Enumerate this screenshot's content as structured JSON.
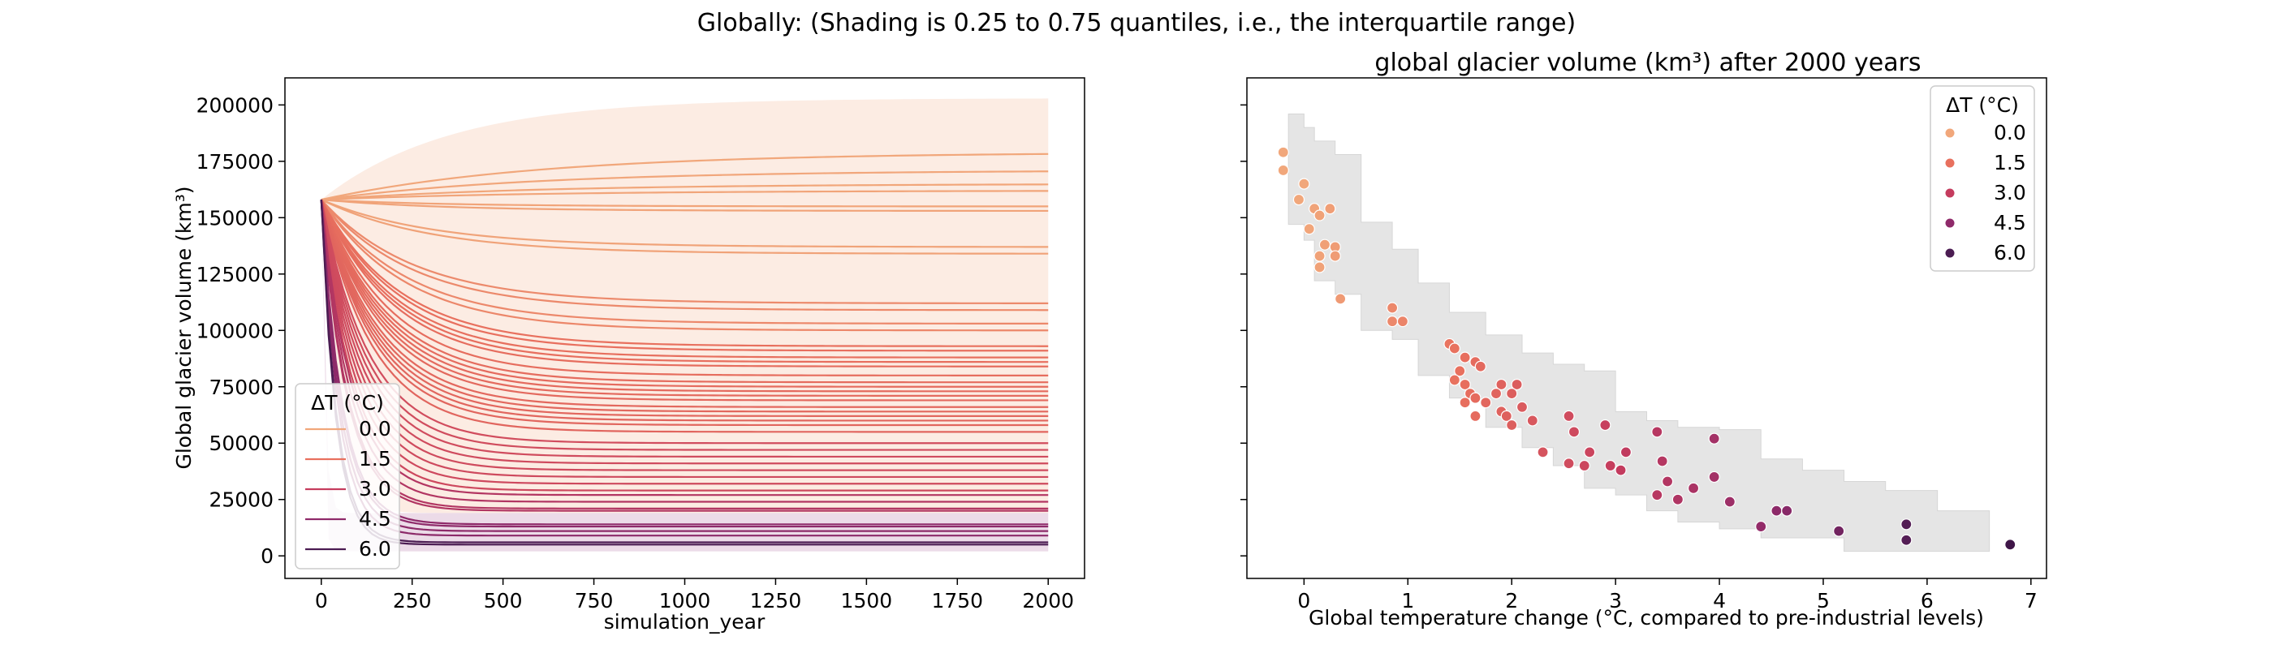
{
  "suptitle": "Globally: (Shading is 0.25 to 0.75 quantiles, i.e., the interquartile range)",
  "colors": {
    "0.0": "#f1a77b",
    "1.5": "#e8705e",
    "3.0": "#c53c5e",
    "4.5": "#8f2a6a",
    "6.0": "#4b1c52",
    "left_shade_top": "#fbe6d9",
    "left_shade_bottom": "#e6cfe0",
    "right_shade": "#e5e5e5"
  },
  "legend_left": {
    "title": "ΔT (°C)",
    "entries": [
      "0.0",
      "1.5",
      "3.0",
      "4.5",
      "6.0"
    ],
    "placement": "lower-left"
  },
  "legend_right": {
    "title": "ΔT (°C)",
    "entries": [
      "0.0",
      "1.5",
      "3.0",
      "4.5",
      "6.0"
    ],
    "placement": "upper-right"
  },
  "chart_data": [
    {
      "type": "line",
      "title": "",
      "xlabel": "simulation_year",
      "ylabel": "Global glacier volume (km³)",
      "xlim": [
        -100,
        2100
      ],
      "ylim": [
        -10000,
        212000
      ],
      "xticks": [
        0,
        250,
        500,
        750,
        1000,
        1250,
        1500,
        1750,
        2000
      ],
      "yticks": [
        0,
        25000,
        50000,
        75000,
        100000,
        125000,
        150000,
        175000,
        200000
      ],
      "start_volume": 158000,
      "grid": false,
      "series_final_values": [
        {
          "dT": 0.0,
          "values": [
            179000,
            171000,
            165000,
            162000,
            155000,
            153000,
            137000,
            134000
          ]
        },
        {
          "dT": 0.8,
          "values": [
            112000,
            109000,
            103000,
            100000
          ]
        },
        {
          "dT": 1.5,
          "values": [
            93000,
            91000,
            88000,
            86000,
            84000,
            80000,
            77000,
            75000,
            73000,
            71000,
            69000,
            66000,
            64000,
            62000,
            60000,
            58000,
            55000
          ]
        },
        {
          "dT": 2.5,
          "values": [
            50000,
            47000,
            44000,
            41000,
            38000,
            35000,
            32000,
            29000
          ]
        },
        {
          "dT": 3.5,
          "values": [
            27000,
            24000,
            21000,
            20000
          ]
        },
        {
          "dT": 4.5,
          "values": [
            14000,
            13000,
            11000,
            9000
          ]
        },
        {
          "dT": 6.0,
          "values": [
            6000,
            5000
          ]
        }
      ],
      "shading_upper": {
        "top": 203000,
        "bottom": 19000
      },
      "shading_lower": {
        "top": 19000,
        "bottom": 2000
      }
    },
    {
      "type": "scatter",
      "title": "global glacier volume (km³) after 2000 years",
      "xlabel": "Global temperature change (°C, compared to pre-industrial levels)",
      "xlim": [
        -0.55,
        7.15
      ],
      "ylim": [
        -10000,
        212000
      ],
      "xticks": [
        0,
        1,
        2,
        3,
        4,
        5,
        6,
        7
      ],
      "points": [
        [
          -0.2,
          179000
        ],
        [
          -0.2,
          171000
        ],
        [
          0.0,
          165000
        ],
        [
          -0.05,
          158000
        ],
        [
          0.1,
          154000
        ],
        [
          0.25,
          154000
        ],
        [
          0.15,
          151000
        ],
        [
          0.05,
          145000
        ],
        [
          0.2,
          138000
        ],
        [
          0.3,
          137000
        ],
        [
          0.15,
          133000
        ],
        [
          0.3,
          133000
        ],
        [
          0.15,
          128000
        ],
        [
          0.35,
          114000
        ],
        [
          0.85,
          110000
        ],
        [
          0.85,
          104000
        ],
        [
          0.95,
          104000
        ],
        [
          1.4,
          94000
        ],
        [
          1.45,
          92000
        ],
        [
          1.55,
          88000
        ],
        [
          1.65,
          86000
        ],
        [
          1.5,
          82000
        ],
        [
          1.7,
          84000
        ],
        [
          1.45,
          78000
        ],
        [
          1.55,
          76000
        ],
        [
          1.9,
          76000
        ],
        [
          2.05,
          76000
        ],
        [
          1.6,
          72000
        ],
        [
          1.65,
          70000
        ],
        [
          1.85,
          72000
        ],
        [
          2.0,
          72000
        ],
        [
          1.55,
          68000
        ],
        [
          1.75,
          68000
        ],
        [
          1.9,
          64000
        ],
        [
          2.1,
          66000
        ],
        [
          1.65,
          62000
        ],
        [
          1.95,
          62000
        ],
        [
          2.2,
          60000
        ],
        [
          2.55,
          62000
        ],
        [
          2.0,
          58000
        ],
        [
          2.9,
          58000
        ],
        [
          2.6,
          55000
        ],
        [
          2.3,
          46000
        ],
        [
          2.75,
          46000
        ],
        [
          3.1,
          46000
        ],
        [
          2.55,
          41000
        ],
        [
          2.7,
          40000
        ],
        [
          2.95,
          40000
        ],
        [
          3.05,
          38000
        ],
        [
          3.4,
          55000
        ],
        [
          3.45,
          42000
        ],
        [
          3.5,
          33000
        ],
        [
          3.6,
          25000
        ],
        [
          3.4,
          27000
        ],
        [
          3.75,
          30000
        ],
        [
          3.95,
          52000
        ],
        [
          3.95,
          35000
        ],
        [
          4.1,
          24000
        ],
        [
          4.4,
          13000
        ],
        [
          4.55,
          20000
        ],
        [
          4.65,
          20000
        ],
        [
          5.15,
          11000
        ],
        [
          5.8,
          14000
        ],
        [
          5.8,
          7000
        ],
        [
          6.8,
          5000
        ]
      ],
      "shading_band": [
        [
          -0.15,
          196000,
          147000
        ],
        [
          0.0,
          190000,
          140000
        ],
        [
          0.1,
          184000,
          122000
        ],
        [
          0.3,
          178000,
          116000
        ],
        [
          0.55,
          148000,
          100000
        ],
        [
          0.85,
          136000,
          96000
        ],
        [
          1.1,
          121000,
          80000
        ],
        [
          1.4,
          108000,
          70000
        ],
        [
          1.75,
          98000,
          57000
        ],
        [
          2.1,
          90000,
          48000
        ],
        [
          2.4,
          85000,
          40000
        ],
        [
          2.7,
          82000,
          30000
        ],
        [
          3.0,
          64000,
          27000
        ],
        [
          3.3,
          60000,
          20000
        ],
        [
          3.6,
          57000,
          15000
        ],
        [
          4.0,
          56000,
          12000
        ],
        [
          4.4,
          43000,
          8000
        ],
        [
          4.8,
          38000,
          8000
        ],
        [
          5.2,
          33000,
          2000
        ],
        [
          5.6,
          29000,
          2000
        ],
        [
          6.1,
          20000,
          2000
        ]
      ]
    }
  ]
}
